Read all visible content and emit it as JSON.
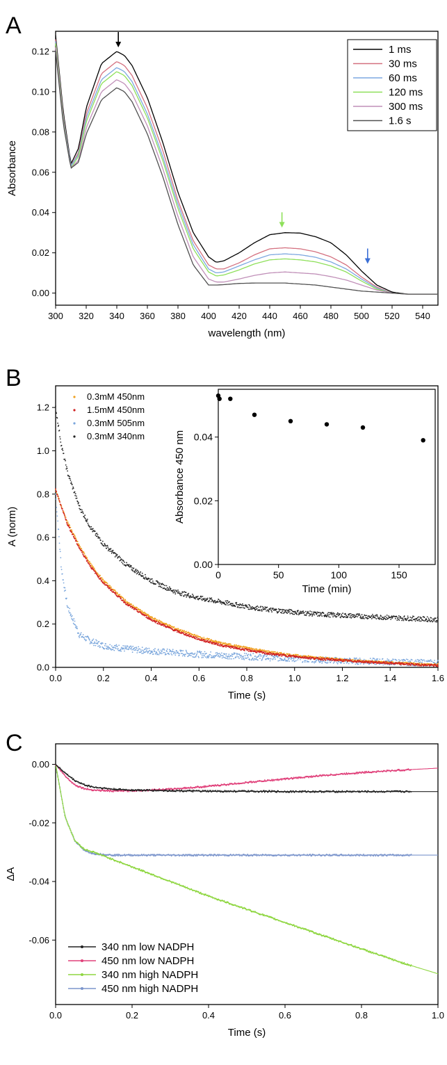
{
  "chart_data": [
    {
      "panel_label": "A",
      "type": "line",
      "xlabel": "wavelength (nm)",
      "ylabel": "Absorbance",
      "xlim": [
        300,
        550
      ],
      "ylim": [
        -0.006,
        0.13
      ],
      "xticks": [
        300,
        320,
        340,
        360,
        380,
        400,
        420,
        440,
        460,
        480,
        500,
        520,
        540
      ],
      "xtick_labels": [
        "300",
        "320",
        "340",
        "360",
        "380",
        "400",
        "420",
        "440",
        "460",
        "480",
        "500",
        "520",
        "540"
      ],
      "yticks": [
        0.0,
        0.02,
        0.04,
        0.06,
        0.08,
        0.1,
        0.12
      ],
      "ytick_labels": [
        "0.00",
        "0.02",
        "0.04",
        "0.06",
        "0.08",
        "0.10",
        "0.12"
      ],
      "legend_position": "top-right",
      "series": [
        {
          "name": "1 ms",
          "color": "#000000",
          "x": [
            300,
            305,
            310,
            315,
            320,
            330,
            340,
            345,
            350,
            360,
            370,
            380,
            390,
            400,
            405,
            410,
            420,
            430,
            440,
            450,
            460,
            470,
            480,
            490,
            500,
            510,
            520,
            530,
            540,
            550
          ],
          "values": [
            0.128,
            0.09,
            0.064,
            0.072,
            0.092,
            0.114,
            0.12,
            0.118,
            0.113,
            0.097,
            0.075,
            0.05,
            0.03,
            0.018,
            0.0153,
            0.016,
            0.02,
            0.025,
            0.029,
            0.03,
            0.0298,
            0.028,
            0.025,
            0.019,
            0.011,
            0.004,
            0.0005,
            -0.0005,
            -0.0005,
            -0.0005
          ]
        },
        {
          "name": "30 ms",
          "color": "#d4707f",
          "x": [
            300,
            305,
            310,
            315,
            320,
            330,
            340,
            345,
            350,
            360,
            370,
            380,
            390,
            400,
            405,
            410,
            420,
            430,
            440,
            450,
            460,
            470,
            480,
            490,
            500,
            510,
            520,
            530,
            540,
            550
          ],
          "values": [
            0.126,
            0.088,
            0.063,
            0.07,
            0.089,
            0.109,
            0.115,
            0.113,
            0.108,
            0.092,
            0.071,
            0.046,
            0.026,
            0.014,
            0.012,
            0.012,
            0.015,
            0.019,
            0.022,
            0.0225,
            0.022,
            0.0205,
            0.018,
            0.014,
            0.008,
            0.003,
            0.0,
            -0.0005,
            -0.0005,
            -0.0005
          ]
        },
        {
          "name": "60 ms",
          "color": "#7da8e0",
          "x": [
            300,
            305,
            310,
            315,
            320,
            330,
            340,
            345,
            350,
            360,
            370,
            380,
            390,
            400,
            405,
            410,
            420,
            430,
            440,
            450,
            460,
            470,
            480,
            490,
            500,
            510,
            520,
            530,
            540,
            550
          ],
          "values": [
            0.125,
            0.087,
            0.063,
            0.069,
            0.087,
            0.106,
            0.112,
            0.11,
            0.105,
            0.089,
            0.068,
            0.044,
            0.024,
            0.012,
            0.01,
            0.0105,
            0.0135,
            0.0165,
            0.019,
            0.0195,
            0.019,
            0.0178,
            0.0155,
            0.012,
            0.007,
            0.0025,
            0.0,
            -0.0005,
            -0.0005,
            -0.0005
          ]
        },
        {
          "name": "120 ms",
          "color": "#8ee05a",
          "x": [
            300,
            305,
            310,
            315,
            320,
            330,
            340,
            345,
            350,
            360,
            370,
            380,
            390,
            400,
            405,
            410,
            420,
            430,
            440,
            450,
            460,
            470,
            480,
            490,
            500,
            510,
            520,
            530,
            540,
            550
          ],
          "values": [
            0.124,
            0.086,
            0.062,
            0.068,
            0.085,
            0.104,
            0.11,
            0.108,
            0.103,
            0.087,
            0.066,
            0.042,
            0.022,
            0.0105,
            0.0085,
            0.009,
            0.0115,
            0.0145,
            0.0165,
            0.017,
            0.0165,
            0.0155,
            0.0135,
            0.0105,
            0.006,
            0.002,
            0.0,
            -0.0005,
            -0.0005,
            -0.0005
          ]
        },
        {
          "name": "300 ms",
          "color": "#c08fb8",
          "x": [
            300,
            305,
            310,
            315,
            320,
            330,
            340,
            345,
            350,
            360,
            370,
            380,
            390,
            400,
            405,
            410,
            420,
            430,
            440,
            450,
            460,
            470,
            480,
            490,
            500,
            510,
            520,
            530,
            540,
            550
          ],
          "values": [
            0.122,
            0.085,
            0.062,
            0.066,
            0.082,
            0.1,
            0.106,
            0.104,
            0.099,
            0.083,
            0.062,
            0.038,
            0.018,
            0.007,
            0.0055,
            0.0055,
            0.007,
            0.0088,
            0.01,
            0.0105,
            0.01,
            0.0095,
            0.0082,
            0.0065,
            0.004,
            0.0015,
            0.0,
            -0.0005,
            -0.0005,
            -0.0005
          ]
        },
        {
          "name": "1.6 s",
          "color": "#505050",
          "x": [
            300,
            305,
            310,
            315,
            320,
            330,
            340,
            345,
            350,
            360,
            370,
            380,
            390,
            400,
            405,
            410,
            420,
            430,
            440,
            450,
            460,
            470,
            480,
            490,
            500,
            510,
            520,
            530,
            540,
            550
          ],
          "values": [
            0.12,
            0.084,
            0.062,
            0.065,
            0.079,
            0.096,
            0.102,
            0.1,
            0.095,
            0.079,
            0.058,
            0.034,
            0.014,
            0.004,
            0.004,
            0.0042,
            0.0048,
            0.005,
            0.005,
            0.005,
            0.0045,
            0.004,
            0.003,
            0.002,
            0.001,
            0.0005,
            0.0,
            -0.0005,
            -0.0005,
            -0.0005
          ]
        }
      ],
      "annotations": [
        {
          "type": "arrow",
          "x": 341,
          "y_tip": 0.121,
          "color": "#000000"
        },
        {
          "type": "arrow",
          "x": 448,
          "y_tip": 0.0315,
          "color": "#8ee05a"
        },
        {
          "type": "arrow",
          "x": 504,
          "y_tip": 0.0135,
          "color": "#3b6fd6"
        }
      ]
    },
    {
      "panel_label": "B",
      "type": "scatter",
      "xlabel": "Time (s)",
      "ylabel": "A (norm)",
      "xlim": [
        0,
        1.6
      ],
      "ylim": [
        0,
        1.3
      ],
      "xticks": [
        0,
        0.2,
        0.4,
        0.6,
        0.8,
        1.0,
        1.2,
        1.4,
        1.6
      ],
      "xtick_labels": [
        "0.0",
        "0.2",
        "0.4",
        "0.6",
        "0.8",
        "1.0",
        "1.2",
        "1.4",
        "1.6"
      ],
      "yticks": [
        0,
        0.2,
        0.4,
        0.6,
        0.8,
        1.0,
        1.2
      ],
      "ytick_labels": [
        "0.0",
        "0.2",
        "0.4",
        "0.6",
        "0.8",
        "1.0",
        "1.2"
      ],
      "legend_position": "top-left",
      "series": [
        {
          "name": "0.3mM 450nm",
          "color": "#f0a020",
          "x": [
            0,
            0.025,
            0.05,
            0.1,
            0.15,
            0.2,
            0.3,
            0.4,
            0.5,
            0.6,
            0.7,
            0.8,
            0.9,
            1.0,
            1.1,
            1.2,
            1.3,
            1.4,
            1.5,
            1.6
          ],
          "values": [
            0.82,
            0.74,
            0.67,
            0.56,
            0.47,
            0.4,
            0.3,
            0.23,
            0.18,
            0.14,
            0.11,
            0.09,
            0.07,
            0.055,
            0.045,
            0.035,
            0.028,
            0.022,
            0.016,
            0.012
          ]
        },
        {
          "name": "1.5mM 450nm",
          "color": "#d02020",
          "x": [
            0,
            0.025,
            0.05,
            0.1,
            0.15,
            0.2,
            0.3,
            0.4,
            0.5,
            0.6,
            0.7,
            0.8,
            0.9,
            1.0,
            1.1,
            1.2,
            1.3,
            1.4,
            1.5,
            1.6
          ],
          "values": [
            0.82,
            0.74,
            0.66,
            0.55,
            0.46,
            0.39,
            0.29,
            0.22,
            0.17,
            0.13,
            0.1,
            0.08,
            0.062,
            0.05,
            0.04,
            0.032,
            0.025,
            0.019,
            0.013,
            0.008
          ]
        },
        {
          "name": "0.3mM 505nm",
          "color": "#7aa6dc",
          "x": [
            0,
            0.025,
            0.05,
            0.1,
            0.15,
            0.2,
            0.3,
            0.4,
            0.5,
            0.6,
            0.7,
            0.8,
            0.9,
            1.0,
            1.1,
            1.2,
            1.3,
            1.4,
            1.5,
            1.6
          ],
          "values": [
            0.8,
            0.45,
            0.28,
            0.15,
            0.12,
            0.1,
            0.085,
            0.075,
            0.068,
            0.06,
            0.055,
            0.05,
            0.045,
            0.04,
            0.035,
            0.03,
            0.028,
            0.025,
            0.022,
            0.02
          ]
        },
        {
          "name": "0.3mM 340nm",
          "color": "#222222",
          "x": [
            0,
            0.025,
            0.05,
            0.1,
            0.15,
            0.2,
            0.3,
            0.4,
            0.5,
            0.6,
            0.7,
            0.8,
            0.9,
            1.0,
            1.1,
            1.2,
            1.3,
            1.4,
            1.5,
            1.6
          ],
          "values": [
            1.2,
            1.02,
            0.9,
            0.74,
            0.64,
            0.57,
            0.47,
            0.4,
            0.35,
            0.32,
            0.3,
            0.28,
            0.265,
            0.255,
            0.245,
            0.24,
            0.235,
            0.23,
            0.225,
            0.22
          ]
        }
      ],
      "inset": {
        "type": "scatter",
        "xlabel": "Time (min)",
        "ylabel": "Absorbance 450 nm",
        "xlim": [
          0,
          180
        ],
        "ylim": [
          0,
          0.055
        ],
        "xticks": [
          0,
          50,
          100,
          150
        ],
        "xtick_labels": [
          "0",
          "50",
          "100",
          "150"
        ],
        "yticks": [
          0,
          0.02,
          0.04
        ],
        "ytick_labels": [
          "0.00",
          "0.02",
          "0.04"
        ],
        "x": [
          0,
          1,
          10,
          30,
          60,
          90,
          120,
          170
        ],
        "values": [
          0.053,
          0.052,
          0.052,
          0.047,
          0.045,
          0.044,
          0.043,
          0.039
        ]
      }
    },
    {
      "panel_label": "C",
      "type": "line",
      "xlabel": "Time (s)",
      "ylabel": "ΔA",
      "xlim": [
        0,
        1.0
      ],
      "ylim": [
        -0.082,
        0.007
      ],
      "xticks": [
        0,
        0.2,
        0.4,
        0.6,
        0.8,
        1.0
      ],
      "xtick_labels": [
        "0.0",
        "0.2",
        "0.4",
        "0.6",
        "0.8",
        "1.0"
      ],
      "yticks": [
        0,
        -0.02,
        -0.04,
        -0.06
      ],
      "ytick_labels": [
        "0.00",
        "-0.02",
        "-0.04",
        "-0.06"
      ],
      "legend_position": "bottom-left",
      "series": [
        {
          "name": "340 nm low NADPH",
          "color": "#222222",
          "x": [
            0,
            0.025,
            0.05,
            0.075,
            0.1,
            0.15,
            0.2,
            0.3,
            0.4,
            0.5,
            0.6,
            0.7,
            0.8,
            0.9,
            1.0
          ],
          "values": [
            0.0,
            -0.003,
            -0.0055,
            -0.007,
            -0.0078,
            -0.0085,
            -0.0088,
            -0.009,
            -0.0092,
            -0.0092,
            -0.0093,
            -0.0093,
            -0.0093,
            -0.0093,
            -0.0093
          ]
        },
        {
          "name": "450 nm low NADPH",
          "color": "#e0407a",
          "x": [
            0,
            0.025,
            0.05,
            0.075,
            0.1,
            0.15,
            0.2,
            0.3,
            0.4,
            0.5,
            0.6,
            0.7,
            0.8,
            0.9,
            1.0
          ],
          "values": [
            0.0,
            -0.004,
            -0.007,
            -0.0083,
            -0.0088,
            -0.0091,
            -0.009,
            -0.0085,
            -0.0075,
            -0.0062,
            -0.005,
            -0.0038,
            -0.0028,
            -0.002,
            -0.0013
          ]
        },
        {
          "name": "340 nm high NADPH",
          "color": "#8ed640",
          "x": [
            0,
            0.025,
            0.05,
            0.075,
            0.1,
            0.15,
            0.2,
            0.3,
            0.4,
            0.5,
            0.6,
            0.7,
            0.8,
            0.9,
            1.0
          ],
          "values": [
            0.0,
            -0.018,
            -0.026,
            -0.029,
            -0.03,
            -0.0325,
            -0.035,
            -0.04,
            -0.045,
            -0.0495,
            -0.054,
            -0.0585,
            -0.063,
            -0.0675,
            -0.0715
          ]
        },
        {
          "name": "450 nm high NADPH",
          "color": "#7b95cc",
          "x": [
            0,
            0.025,
            0.05,
            0.075,
            0.1,
            0.15,
            0.2,
            0.3,
            0.4,
            0.5,
            0.6,
            0.7,
            0.8,
            0.9,
            1.0
          ],
          "values": [
            0.0,
            -0.018,
            -0.026,
            -0.0295,
            -0.0305,
            -0.031,
            -0.031,
            -0.031,
            -0.031,
            -0.031,
            -0.031,
            -0.031,
            -0.031,
            -0.031,
            -0.031
          ]
        }
      ]
    }
  ]
}
